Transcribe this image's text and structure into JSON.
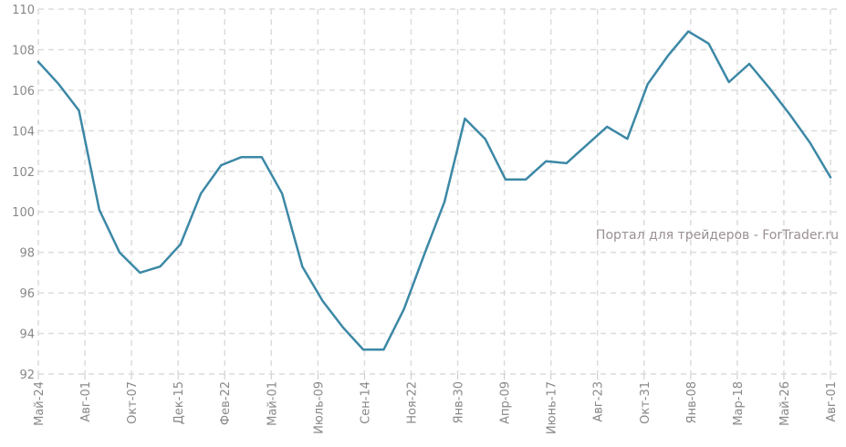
{
  "watermark": "Портал для трейдеров - ForTrader.ru",
  "colors": {
    "line": "#3c88a6",
    "grid": "#dcdcdc",
    "axis_text": "#888888",
    "watermark": "#9a8f93"
  },
  "chart_data": {
    "type": "line",
    "title": "",
    "xlabel": "",
    "ylabel": "",
    "ylim": [
      92,
      110
    ],
    "yticks": [
      92,
      94,
      96,
      98,
      100,
      102,
      104,
      106,
      108,
      110
    ],
    "grid": true,
    "x_tick_labels": [
      "Май-24",
      "Авг-01",
      "Окт-07",
      "Дек-15",
      "Фев-22",
      "Май-01",
      "Июль-09",
      "Сен-14",
      "Ноя-22",
      "Янв-30",
      "Апр-09",
      "Июнь-17",
      "Авг-23",
      "Окт-31",
      "Янв-08",
      "Мар-18",
      "Май-26",
      "Авг-01"
    ],
    "series": [
      {
        "values": [
          107.4,
          106.3,
          105.0,
          100.1,
          98.0,
          97.0,
          97.3,
          98.4,
          100.9,
          102.3,
          102.7,
          102.7,
          100.9,
          97.3,
          95.6,
          94.3,
          93.2,
          93.2,
          95.2,
          97.9,
          100.5,
          104.6,
          103.6,
          101.6,
          101.6,
          102.5,
          102.4,
          103.3,
          104.2,
          103.6,
          106.3,
          107.7,
          108.9,
          108.3,
          106.4,
          107.3,
          106.1,
          104.8,
          103.4,
          101.7
        ]
      }
    ]
  }
}
